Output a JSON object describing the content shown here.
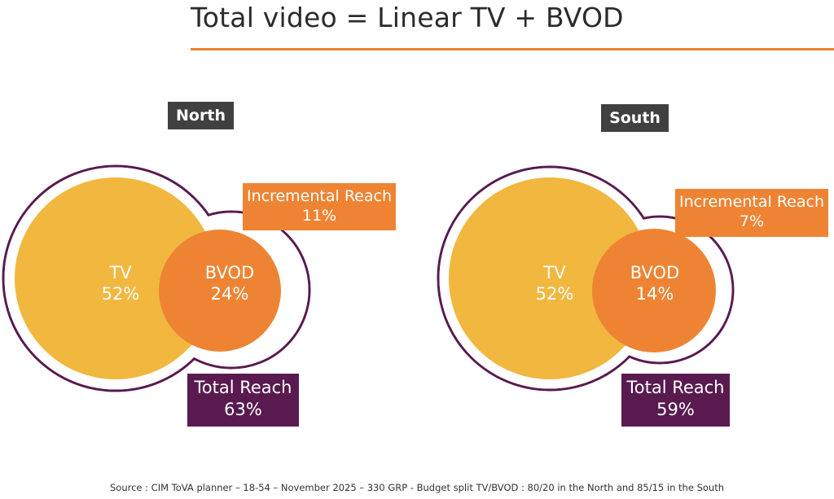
{
  "title": "Total video = Linear TV + BVOD",
  "colors": {
    "tv": "#f1b73f",
    "bvod": "#ee8433",
    "outline": "#591a4f",
    "incremental_box": "#ee8433",
    "total_box": "#591a4f",
    "region_label": "#404040",
    "title_rule": "#ee8433"
  },
  "regions": [
    {
      "label": "North",
      "tv": {
        "label": "TV",
        "value": "52%"
      },
      "bvod": {
        "label": "BVOD",
        "value": "24%"
      },
      "incremental_reach": {
        "label": "Incremental Reach",
        "value": "11%"
      },
      "total_reach": {
        "label": "Total Reach",
        "value": "63%"
      }
    },
    {
      "label": "South",
      "tv": {
        "label": "TV",
        "value": "52%"
      },
      "bvod": {
        "label": "BVOD",
        "value": "14%"
      },
      "incremental_reach": {
        "label": "Incremental Reach",
        "value": "7%"
      },
      "total_reach": {
        "label": "Total Reach",
        "value": "59%"
      }
    }
  ],
  "source": "Source : CIM ToVA planner – 18-54 – November 2025 – 330 GRP - Budget split TV/BVOD : 80/20 in the North and 85/15 in the South"
}
